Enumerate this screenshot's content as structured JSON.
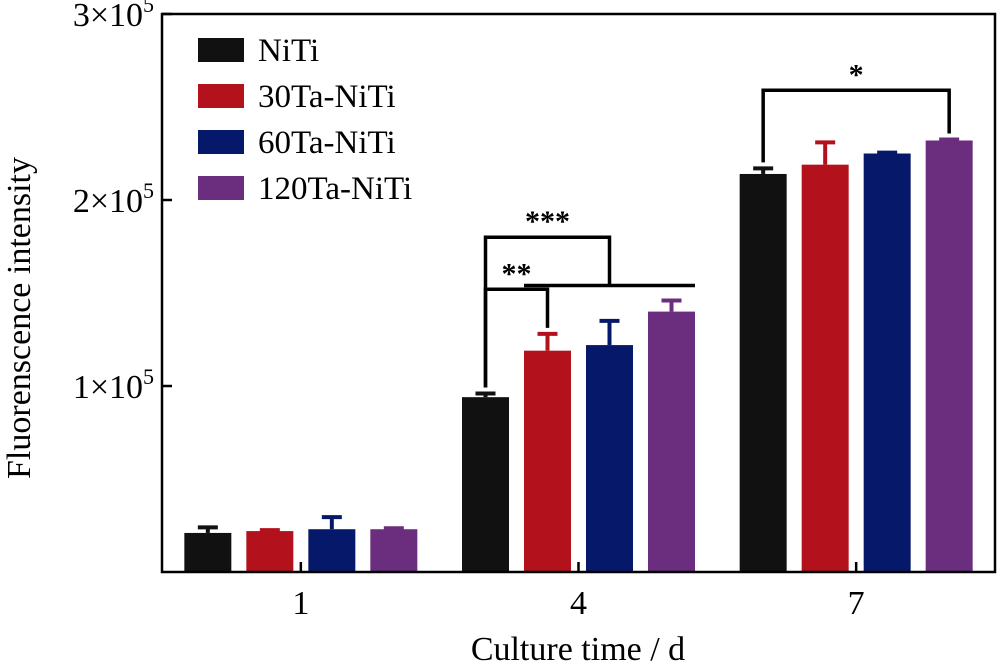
{
  "chart_data": {
    "type": "bar",
    "title": "",
    "xlabel": "Culture time / d",
    "ylabel": "Fluorenscence intensity",
    "categories": [
      "1",
      "4",
      "7"
    ],
    "ylim": [
      0,
      300000
    ],
    "yticks": [
      {
        "value": 100000,
        "mantissa": "1×10",
        "exp": "5"
      },
      {
        "value": 200000,
        "mantissa": "2×10",
        "exp": "5"
      },
      {
        "value": 300000,
        "mantissa": "3×10",
        "exp": "5"
      }
    ],
    "legend_position": "top-left",
    "series": [
      {
        "name": "NiTi",
        "color": "#111111",
        "values": [
          21000,
          94000,
          214000
        ],
        "errors": [
          3000,
          2000,
          3000
        ]
      },
      {
        "name": "30Ta-NiTi",
        "color": "#b3121c",
        "values": [
          22000,
          119000,
          219000
        ],
        "errors": [
          500,
          9000,
          12000
        ]
      },
      {
        "name": "60Ta-NiTi",
        "color": "#06186a",
        "values": [
          23000,
          122000,
          225000
        ],
        "errors": [
          6500,
          13000,
          500
        ]
      },
      {
        "name": "120Ta-NiTi",
        "color": "#6b2d7d",
        "values": [
          23000,
          140000,
          232000
        ],
        "errors": [
          500,
          6000,
          500
        ]
      }
    ],
    "significance": [
      {
        "label": "**",
        "category": 1,
        "from_series": 0,
        "to_series": 1,
        "level": 152000
      },
      {
        "label": "***",
        "category": 1,
        "from_series": 0,
        "to_group": [
          1,
          3
        ],
        "level": 180000,
        "group_level": 154000
      },
      {
        "label": "*",
        "category": 2,
        "from_series": 0,
        "to_series": 3,
        "level": 259000
      }
    ]
  }
}
